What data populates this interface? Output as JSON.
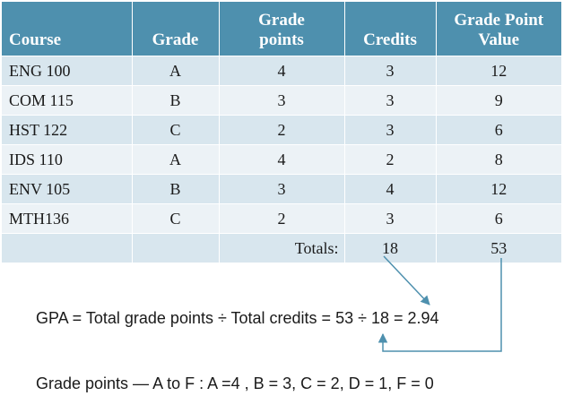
{
  "table": {
    "headers": [
      "Course",
      "Grade",
      "Grade\npoints",
      "Credits",
      "Grade Point\nValue"
    ],
    "rows": [
      [
        "ENG 100",
        "A",
        "4",
        "3",
        "12"
      ],
      [
        "COM 115",
        "B",
        "3",
        "3",
        "9"
      ],
      [
        "HST 122",
        "C",
        "2",
        "3",
        "6"
      ],
      [
        "IDS 110",
        "A",
        "4",
        "2",
        "8"
      ],
      [
        "ENV 105",
        "B",
        "3",
        "4",
        "12"
      ],
      [
        "MTH136",
        "C",
        "2",
        "3",
        "6"
      ]
    ],
    "totals_label": "Totals:",
    "total_credits": "18",
    "total_value": "53"
  },
  "formula": "GPA = Total grade points ÷ Total credits = 53 ÷ 18 = 2.94",
  "scale_note": "Grade points — A to F : A =4 , B = 3, C = 2, D = 1, F = 0",
  "colors": {
    "header": "#4e90ae",
    "row_dark": "#d8e6ee",
    "row_light": "#ecf2f6",
    "arrow": "#4e90ae"
  }
}
